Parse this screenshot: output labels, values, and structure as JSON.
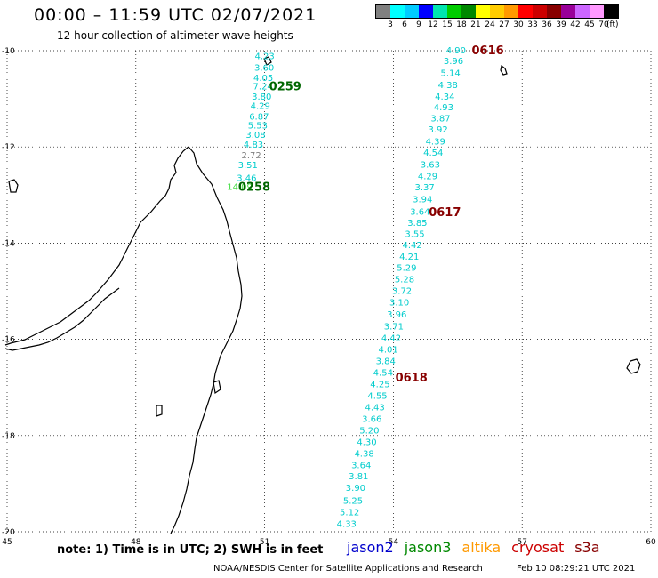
{
  "header": {
    "title": "00:00 – 11:59 UTC 02/07/2021",
    "subtitle": "12 hour collection of altimeter wave heights"
  },
  "color_scale": {
    "colors": [
      "#808080",
      "#00ffff",
      "#00ccff",
      "#0000ff",
      "#00e5b0",
      "#00cc00",
      "#008800",
      "#ffff00",
      "#ffcc00",
      "#ff9900",
      "#ff0000",
      "#cc0000",
      "#880000",
      "#990099",
      "#cc66ff",
      "#ff99ff",
      "#000000"
    ],
    "labels": [
      "3",
      "6",
      "9",
      "12",
      "15",
      "18",
      "21",
      "24",
      "27",
      "30",
      "33",
      "36",
      "39",
      "42",
      "45",
      "70"
    ],
    "unit": "(ft)"
  },
  "map": {
    "lon_range": [
      45,
      60
    ],
    "lat_range": [
      -20,
      -10
    ],
    "lon_ticks": [
      "45",
      "48",
      "51",
      "54",
      "57",
      "60"
    ],
    "lat_ticks": [
      "-10",
      "-12",
      "-14",
      "-16",
      "-18",
      "-20"
    ],
    "grid": "dotted",
    "passes": [
      {
        "label": "0259",
        "lon": 51.48,
        "lat": -10.73,
        "color": "#006600"
      },
      {
        "label": "0258",
        "lon": 50.76,
        "lat": -12.82,
        "color": "#006600"
      },
      {
        "label": "0616",
        "lon": 56.2,
        "lat": -9.98,
        "color": "#880000"
      },
      {
        "label": "0617",
        "lon": 55.2,
        "lat": -13.35,
        "color": "#880000"
      },
      {
        "label": "0618",
        "lon": 54.42,
        "lat": -16.78,
        "color": "#880000"
      }
    ],
    "tracks": [
      {
        "name": "jason3",
        "readings": [
          {
            "v": "4.23",
            "lon": 51.0,
            "lat": -10.1,
            "color": "#00cccc"
          },
          {
            "v": "3.60",
            "lon": 50.99,
            "lat": -10.34,
            "color": "#00cccc"
          },
          {
            "v": "4.05",
            "lon": 50.97,
            "lat": -10.55,
            "color": "#00cccc"
          },
          {
            "v": "7.24",
            "lon": 50.96,
            "lat": -10.73,
            "color": "#00cccc"
          },
          {
            "v": "3.80",
            "lon": 50.93,
            "lat": -10.94,
            "color": "#00cccc"
          },
          {
            "v": "4.29",
            "lon": 50.9,
            "lat": -11.14,
            "color": "#00cccc"
          },
          {
            "v": "6.87",
            "lon": 50.87,
            "lat": -11.36,
            "color": "#00cccc"
          },
          {
            "v": "5.53",
            "lon": 50.84,
            "lat": -11.54,
            "color": "#00cccc"
          },
          {
            "v": "3.08",
            "lon": 50.79,
            "lat": -11.74,
            "color": "#00cccc"
          },
          {
            "v": "4.83",
            "lon": 50.74,
            "lat": -11.94,
            "color": "#00cccc"
          },
          {
            "v": "2.72",
            "lon": 50.69,
            "lat": -12.16,
            "color": "#808080"
          },
          {
            "v": "3.51",
            "lon": 50.61,
            "lat": -12.37,
            "color": "#00cccc"
          },
          {
            "v": "3.46",
            "lon": 50.58,
            "lat": -12.63,
            "color": "#00cccc"
          },
          {
            "v": "14.09",
            "lon": 50.42,
            "lat": -12.82,
            "color": "#44dd44"
          }
        ]
      },
      {
        "name": "cryosat",
        "readings": [
          {
            "v": "4.90",
            "lon": 55.46,
            "lat": -9.98,
            "color": "#00cccc"
          },
          {
            "v": "3.96",
            "lon": 55.4,
            "lat": -10.2,
            "color": "#00cccc"
          },
          {
            "v": "5.14",
            "lon": 55.33,
            "lat": -10.45,
            "color": "#00cccc"
          },
          {
            "v": "4.38",
            "lon": 55.27,
            "lat": -10.7,
            "color": "#00cccc"
          },
          {
            "v": "4.34",
            "lon": 55.2,
            "lat": -10.94,
            "color": "#00cccc"
          },
          {
            "v": "4.93",
            "lon": 55.17,
            "lat": -11.16,
            "color": "#00cccc"
          },
          {
            "v": "3.87",
            "lon": 55.1,
            "lat": -11.4,
            "color": "#00cccc"
          },
          {
            "v": "3.92",
            "lon": 55.04,
            "lat": -11.63,
            "color": "#00cccc"
          },
          {
            "v": "4.39",
            "lon": 54.98,
            "lat": -11.88,
            "color": "#00cccc"
          },
          {
            "v": "4.54",
            "lon": 54.93,
            "lat": -12.11,
            "color": "#00cccc"
          },
          {
            "v": "3.63",
            "lon": 54.86,
            "lat": -12.36,
            "color": "#00cccc"
          },
          {
            "v": "4.29",
            "lon": 54.8,
            "lat": -12.6,
            "color": "#00cccc"
          },
          {
            "v": "3.37",
            "lon": 54.73,
            "lat": -12.83,
            "color": "#00cccc"
          },
          {
            "v": "3.94",
            "lon": 54.68,
            "lat": -13.08,
            "color": "#00cccc"
          },
          {
            "v": "3.64",
            "lon": 54.62,
            "lat": -13.34,
            "color": "#00cccc"
          },
          {
            "v": "3.85",
            "lon": 54.56,
            "lat": -13.57,
            "color": "#00cccc"
          },
          {
            "v": "3.55",
            "lon": 54.5,
            "lat": -13.8,
            "color": "#00cccc"
          },
          {
            "v": "4.42",
            "lon": 54.44,
            "lat": -14.03,
            "color": "#00cccc"
          },
          {
            "v": "4.21",
            "lon": 54.37,
            "lat": -14.27,
            "color": "#00cccc"
          },
          {
            "v": "5.29",
            "lon": 54.31,
            "lat": -14.5,
            "color": "#00cccc"
          },
          {
            "v": "5.28",
            "lon": 54.26,
            "lat": -14.74,
            "color": "#00cccc"
          },
          {
            "v": "3.72",
            "lon": 54.2,
            "lat": -14.98,
            "color": "#00cccc"
          },
          {
            "v": "3.10",
            "lon": 54.14,
            "lat": -15.22,
            "color": "#00cccc"
          },
          {
            "v": "3.96",
            "lon": 54.08,
            "lat": -15.47,
            "color": "#00cccc"
          },
          {
            "v": "3.71",
            "lon": 54.01,
            "lat": -15.72,
            "color": "#00cccc"
          },
          {
            "v": "4.42",
            "lon": 53.95,
            "lat": -15.96,
            "color": "#00cccc"
          },
          {
            "v": "4.01",
            "lon": 53.88,
            "lat": -16.2,
            "color": "#00cccc"
          },
          {
            "v": "3.84",
            "lon": 53.82,
            "lat": -16.44,
            "color": "#00cccc"
          },
          {
            "v": "4.54",
            "lon": 53.76,
            "lat": -16.68,
            "color": "#00cccc"
          },
          {
            "v": "4.25",
            "lon": 53.69,
            "lat": -16.92,
            "color": "#00cccc"
          },
          {
            "v": "4.55",
            "lon": 53.63,
            "lat": -17.16,
            "color": "#00cccc"
          },
          {
            "v": "4.43",
            "lon": 53.57,
            "lat": -17.4,
            "color": "#00cccc"
          },
          {
            "v": "3.66",
            "lon": 53.5,
            "lat": -17.64,
            "color": "#00cccc"
          },
          {
            "v": "5.20",
            "lon": 53.44,
            "lat": -17.88,
            "color": "#00cccc"
          },
          {
            "v": "4.30",
            "lon": 53.38,
            "lat": -18.12,
            "color": "#00cccc"
          },
          {
            "v": "4.38",
            "lon": 53.32,
            "lat": -18.36,
            "color": "#00cccc"
          },
          {
            "v": "3.64",
            "lon": 53.25,
            "lat": -18.6,
            "color": "#00cccc"
          },
          {
            "v": "3.81",
            "lon": 53.19,
            "lat": -18.84,
            "color": "#00cccc"
          },
          {
            "v": "3.90",
            "lon": 53.12,
            "lat": -19.08,
            "color": "#00cccc"
          },
          {
            "v": "5.25",
            "lon": 53.06,
            "lat": -19.34,
            "color": "#00cccc"
          },
          {
            "v": "5.12",
            "lon": 52.98,
            "lat": -19.58,
            "color": "#00cccc"
          },
          {
            "v": "4.33",
            "lon": 52.91,
            "lat": -19.82,
            "color": "#00cccc"
          }
        ]
      }
    ]
  },
  "footer": {
    "note": "note: 1) Time is in UTC; 2) SWH is in feet",
    "missions": [
      {
        "label": "jason2",
        "color": "#0000cc"
      },
      {
        "label": "jason3",
        "color": "#008800"
      },
      {
        "label": "altika",
        "color": "#ff9900"
      },
      {
        "label": "cryosat",
        "color": "#cc0000"
      },
      {
        "label": "s3a",
        "color": "#880000"
      }
    ],
    "credit": "NOAA/NESDIS Center for Satellite Applications and Research",
    "timestamp": "Feb 10 08:29:21 UTC 2021"
  }
}
